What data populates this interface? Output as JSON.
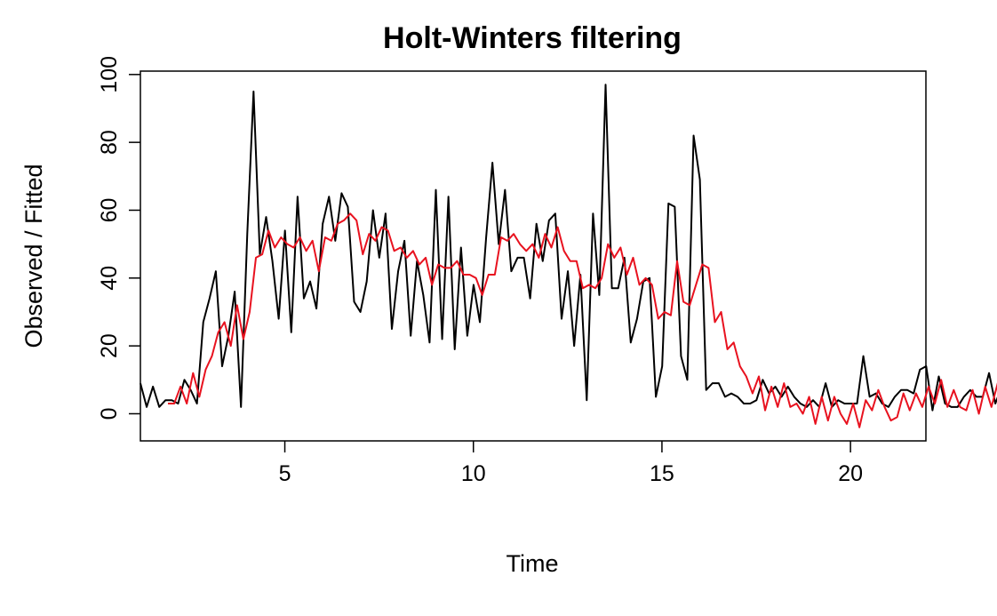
{
  "chart_data": {
    "type": "line",
    "title": "Holt-Winters filtering",
    "xlabel": "Time",
    "ylabel": "Observed / Fitted",
    "xlim": [
      1.17,
      22.0
    ],
    "ylim": [
      -8,
      101
    ],
    "x_ticks": [
      5,
      10,
      15,
      20
    ],
    "y_ticks": [
      0,
      20,
      40,
      60,
      80,
      100
    ],
    "grid": false,
    "legend": "none",
    "series": [
      {
        "color": "#000000",
        "x_start": 1.17,
        "x_step": 0.1667,
        "values": [
          9,
          2,
          8,
          2,
          4,
          4,
          3,
          10,
          7,
          3,
          27,
          34,
          42,
          14,
          23,
          36,
          2,
          53,
          95,
          47,
          58,
          45,
          28,
          54,
          24,
          64,
          34,
          39,
          31,
          56,
          64,
          51,
          65,
          61,
          33,
          30,
          39,
          60,
          46,
          59,
          25,
          42,
          51,
          23,
          45,
          35,
          21,
          66,
          22,
          64,
          19,
          49,
          23,
          38,
          27,
          52,
          74,
          50,
          66,
          42,
          46,
          46,
          34,
          56,
          45,
          57,
          59,
          28,
          42,
          20,
          41,
          4,
          59,
          35,
          97,
          37,
          37,
          46,
          21,
          28,
          39,
          40,
          5,
          14,
          62,
          61,
          17,
          10,
          82,
          69,
          7,
          9,
          9,
          5,
          6,
          5,
          3,
          3,
          4,
          10,
          6,
          8,
          5,
          8,
          5,
          3,
          2,
          4,
          2,
          9,
          2,
          4,
          3,
          3,
          3,
          17,
          5,
          6,
          3,
          2,
          5,
          7,
          7,
          6,
          13,
          14,
          1,
          11,
          3,
          2,
          2,
          5,
          7,
          5,
          5,
          12,
          3,
          8,
          8,
          9,
          7,
          7
        ]
      },
      {
        "color": "#e8121f",
        "x_start": 1.9,
        "x_step": 0.1667,
        "values": [
          3,
          3,
          8,
          3,
          12,
          5,
          13,
          17,
          24,
          27,
          20,
          32,
          22,
          30,
          46,
          47,
          54,
          49,
          52,
          50,
          49,
          52,
          48,
          51,
          42,
          52,
          51,
          56,
          57,
          59,
          57,
          47,
          53,
          51,
          55,
          54,
          48,
          49,
          46,
          48,
          44,
          46,
          38,
          44,
          43,
          43,
          45,
          41,
          41,
          40,
          35,
          41,
          41,
          52,
          51,
          53,
          50,
          48,
          50,
          46,
          53,
          49,
          55,
          48,
          45,
          45,
          37,
          38,
          37,
          40,
          50,
          46,
          49,
          41,
          46,
          38,
          40,
          38,
          28,
          30,
          29,
          45,
          33,
          32,
          38,
          44,
          43,
          27,
          30,
          19,
          21,
          14,
          11,
          6,
          11,
          1,
          8,
          2,
          9,
          2,
          3,
          0,
          5,
          -3,
          5,
          -2,
          5,
          0,
          -3,
          3,
          -4,
          4,
          1,
          7,
          2,
          -2,
          -1,
          6,
          1,
          6,
          2,
          8,
          3,
          10,
          2,
          7,
          2,
          1,
          7,
          0,
          8,
          2,
          9,
          6,
          3,
          8
        ]
      }
    ]
  }
}
